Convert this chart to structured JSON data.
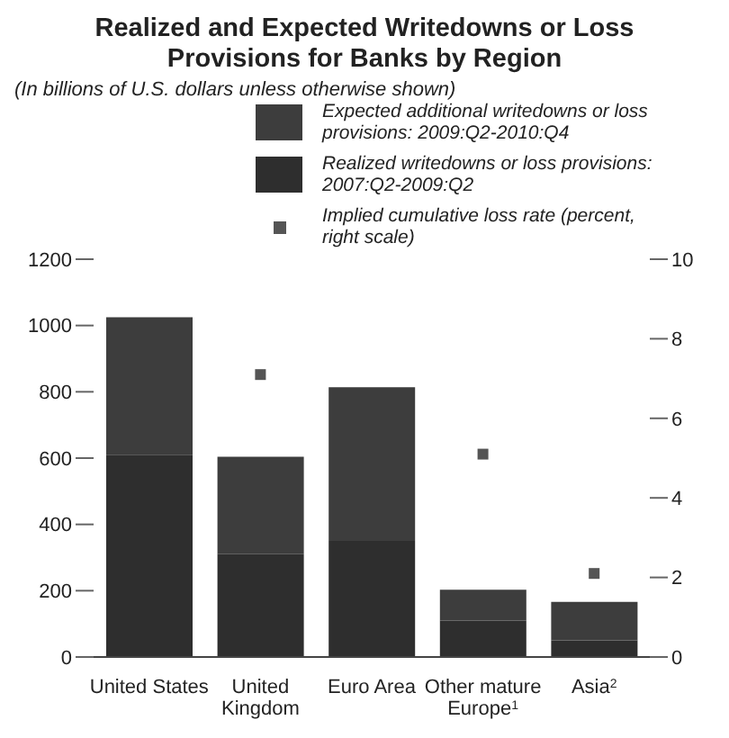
{
  "chart_data": {
    "type": "bar",
    "title": "Realized and Expected Writedowns or Loss Provisions for Banks by Region",
    "subtitle": "(In billions of U.S. dollars unless otherwise shown)",
    "categories": [
      "United States",
      "United Kingdom",
      "Euro Area",
      "Other mature Europe$^{1}$",
      "Asia$^{2}$"
    ],
    "stacked": true,
    "series": [
      {
        "name": "Realized writedowns or loss provisions: 2007:Q2-2009:Q2",
        "color": "#2e2e2e",
        "values": [
          610,
          310,
          350,
          110,
          50
        ]
      },
      {
        "name": "Expected additional writedowns or loss provisions: 2009:Q2-2010:Q4",
        "color": "#3d3d3d",
        "values": [
          415,
          294,
          464,
          93,
          116
        ]
      },
      {
        "name": "Implied cumulative loss rate (percent, right scale)",
        "type": "scatter",
        "axis": "y2",
        "color": "#555555",
        "values": [
          null,
          7.1,
          null,
          5.1,
          2.1
        ]
      }
    ],
    "ylim": [
      0,
      1200
    ],
    "yticks": [
      0,
      200,
      400,
      600,
      800,
      1000,
      1200
    ],
    "y2lim": [
      0,
      10
    ],
    "y2ticks": [
      0,
      2,
      4,
      6,
      8,
      10
    ],
    "legend": "top right",
    "marker": "square"
  }
}
